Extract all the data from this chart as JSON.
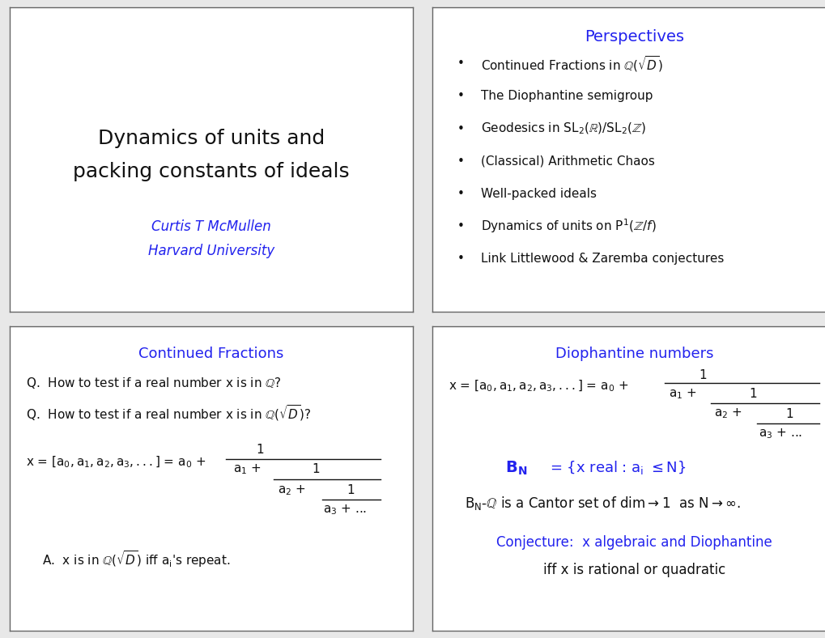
{
  "bg_color": "#e8e8e8",
  "panel_bg": "#ffffff",
  "blue_color": "#2222ee",
  "black_color": "#111111",
  "panel_border_color": "#666666",
  "panel1_title_line1": "Dynamics of units and",
  "panel1_title_line2": "packing constants of ideals",
  "panel1_author": "Curtis T McMullen",
  "panel1_affil": "Harvard University",
  "panel2_title": "Perspectives",
  "panel3_title": "Continued Fractions",
  "panel4_title": "Diophantine numbers"
}
